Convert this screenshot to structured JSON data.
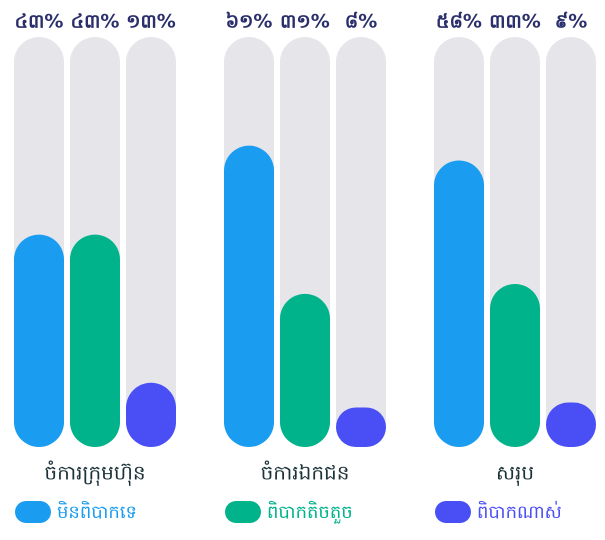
{
  "chart_data": {
    "type": "bar",
    "categories": [
      "ចំការក្រុមហ៊ុន",
      "ចំការឯកជន",
      "សរុប"
    ],
    "series": [
      {
        "name": "មិនពិបាកទេ",
        "color": "#1a9cf0",
        "values": [
          43,
          61,
          58
        ],
        "value_labels": [
          "៤៣%",
          "៦១%",
          "៥៨%"
        ]
      },
      {
        "name": "ពិបាកតិចតួច",
        "color": "#00b38a",
        "values": [
          43,
          31,
          33
        ],
        "value_labels": [
          "៤៣%",
          "៣១%",
          "៣៣%"
        ]
      },
      {
        "name": "ពិបាកណាស់",
        "color": "#4a4ef5",
        "values": [
          13,
          8,
          9
        ],
        "value_labels": [
          "១៣%",
          "៨%",
          "៩%"
        ]
      }
    ],
    "ylim": [
      0,
      83
    ]
  }
}
